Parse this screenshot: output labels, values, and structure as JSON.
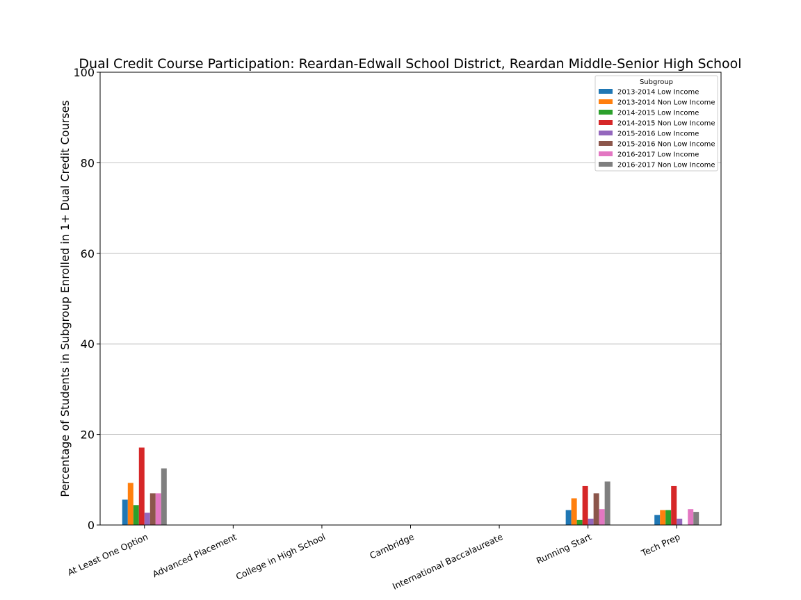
{
  "chart_data": {
    "type": "bar",
    "title": "Dual Credit Course Participation: Reardan-Edwall School District, Reardan Middle-Senior High School",
    "xlabel": "",
    "ylabel": "Percentage of Students in Subgroup Enrolled in 1+ Dual Credit Courses",
    "ylim": [
      0,
      100
    ],
    "yticks": [
      "0",
      "20",
      "40",
      "60",
      "80",
      "100"
    ],
    "grid": "horizontal",
    "legend_title": "Subgroup",
    "legend_position": "top-right",
    "categories": [
      "At Least One Option",
      "Advanced Placement",
      "College in High School",
      "Cambridge",
      "International Baccalaureate",
      "Running Start",
      "Tech Prep"
    ],
    "series": [
      {
        "name": "2013-2014 Low Income",
        "color": "#1f77b4",
        "values": [
          5.6,
          0,
          0,
          0,
          0,
          3.3,
          2.2
        ]
      },
      {
        "name": "2013-2014 Non Low Income",
        "color": "#ff7f0e",
        "values": [
          9.3,
          0,
          0,
          0,
          0,
          5.9,
          3.3
        ]
      },
      {
        "name": "2014-2015 Low Income",
        "color": "#2ca02c",
        "values": [
          4.4,
          0,
          0,
          0,
          0,
          1.1,
          3.3
        ]
      },
      {
        "name": "2014-2015 Non Low Income",
        "color": "#d62728",
        "values": [
          17.1,
          0,
          0,
          0,
          0,
          8.6,
          8.6
        ]
      },
      {
        "name": "2015-2016 Low Income",
        "color": "#9467bd",
        "values": [
          2.7,
          0,
          0,
          0,
          0,
          1.4,
          1.4
        ]
      },
      {
        "name": "2015-2016 Non Low Income",
        "color": "#8c564b",
        "values": [
          7.0,
          0,
          0,
          0,
          0,
          7.0,
          0
        ]
      },
      {
        "name": "2016-2017 Low Income",
        "color": "#e377c2",
        "values": [
          7.0,
          0,
          0,
          0,
          0,
          3.5,
          3.5
        ]
      },
      {
        "name": "2016-2017 Non Low Income",
        "color": "#7f7f7f",
        "values": [
          12.5,
          0,
          0,
          0,
          0,
          9.6,
          2.9
        ]
      }
    ]
  }
}
